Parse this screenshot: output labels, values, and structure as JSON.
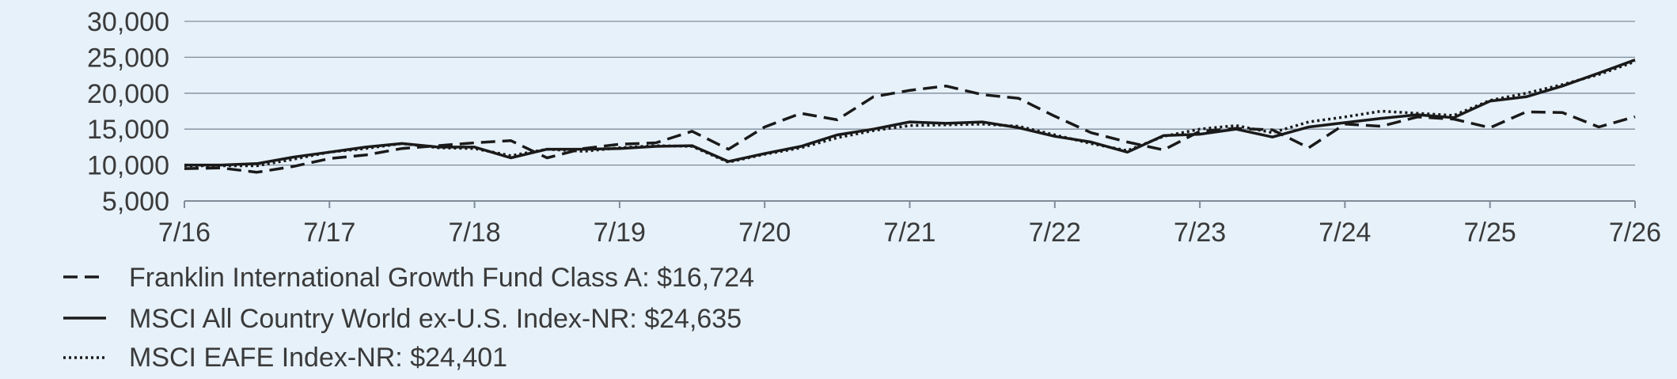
{
  "chart_data": {
    "type": "line",
    "title": "",
    "xlabel": "",
    "ylabel": "",
    "x": [
      "7/16",
      "10/16",
      "1/17",
      "4/17",
      "7/17",
      "10/17",
      "1/18",
      "4/18",
      "7/18",
      "10/18",
      "1/19",
      "4/19",
      "7/19",
      "10/19",
      "1/20",
      "4/20",
      "7/20",
      "10/20",
      "1/21",
      "4/21",
      "7/21",
      "10/21",
      "1/22",
      "4/22",
      "7/22",
      "10/22",
      "1/23",
      "4/23",
      "7/23",
      "10/23",
      "1/24",
      "4/24",
      "7/24",
      "10/24",
      "1/25",
      "4/25",
      "7/25",
      "10/25",
      "1/26",
      "4/26",
      "7/26"
    ],
    "x_ticks": [
      "7/16",
      "7/17",
      "7/18",
      "7/19",
      "7/20",
      "7/21",
      "7/22",
      "7/23",
      "7/24",
      "7/25",
      "7/26"
    ],
    "y_ticks": [
      "5,000",
      "10,000",
      "15,000",
      "20,000",
      "25,000",
      "30,000"
    ],
    "ylim": [
      5000,
      30000
    ],
    "grid": true,
    "legend_position": "bottom-left",
    "series": [
      {
        "name": "Franklin International Growth Fund Class A: $16,724",
        "style": "dashed",
        "color": "#1a1a1a",
        "values": [
          9500,
          9600,
          9000,
          9800,
          10900,
          11400,
          12300,
          12700,
          13100,
          13400,
          11000,
          12300,
          12900,
          13100,
          14700,
          12200,
          15300,
          17200,
          16300,
          19500,
          20400,
          21000,
          19800,
          19300,
          16800,
          14500,
          13200,
          12100,
          14700,
          15100,
          14900,
          12400,
          15700,
          15400,
          16700,
          16400,
          15200,
          17400,
          17300,
          15300,
          16724
        ]
      },
      {
        "name": "MSCI All Country World ex-U.S. Index-NR: $24,635",
        "style": "solid",
        "color": "#1a1a1a",
        "values": [
          10000,
          10000,
          10200,
          11100,
          11800,
          12500,
          13000,
          12500,
          12500,
          11000,
          12200,
          12200,
          12300,
          12600,
          12700,
          10500,
          11600,
          12600,
          14200,
          15000,
          16000,
          15800,
          16000,
          15200,
          14000,
          13200,
          11800,
          14100,
          14300,
          15000,
          13900,
          15300,
          15900,
          16500,
          17000,
          16600,
          18900,
          19500,
          21000,
          22800,
          24635
        ]
      },
      {
        "name": "MSCI EAFE Index-NR: $24,401",
        "style": "dotted",
        "color": "#1a1a1a",
        "values": [
          9900,
          9900,
          9900,
          10800,
          11800,
          12300,
          13000,
          12400,
          12300,
          11300,
          12200,
          11900,
          12400,
          12700,
          12600,
          10400,
          11500,
          12400,
          13800,
          14800,
          15500,
          15600,
          15700,
          15400,
          14200,
          13000,
          12000,
          14000,
          15000,
          15500,
          14500,
          16000,
          16700,
          17500,
          17200,
          16900,
          19000,
          20000,
          21200,
          22600,
          24401
        ]
      }
    ],
    "legend": [
      {
        "label": "Franklin International Growth Fund Class A: $16,724",
        "style": "dashed"
      },
      {
        "label": "MSCI All Country World ex-U.S. Index-NR: $24,635",
        "style": "solid"
      },
      {
        "label": "MSCI EAFE Index-NR: $24,401",
        "style": "dotted"
      }
    ]
  }
}
